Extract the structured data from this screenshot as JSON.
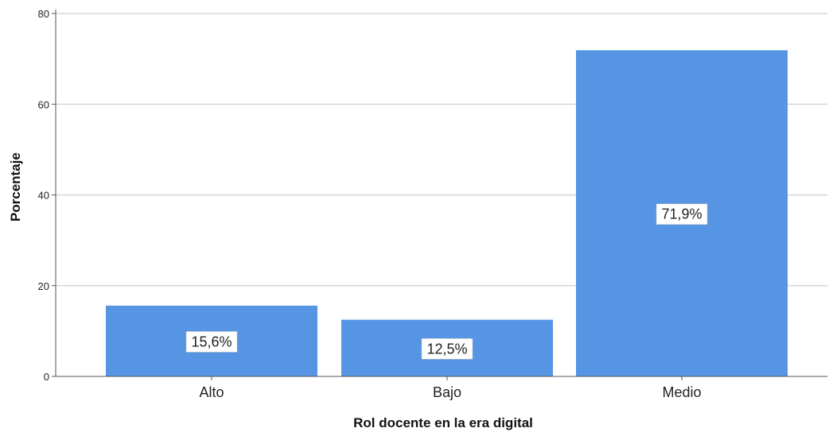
{
  "chart_data": {
    "type": "bar",
    "categories": [
      "Alto",
      "Bajo",
      "Medio"
    ],
    "values": [
      15.6,
      12.5,
      71.9
    ],
    "data_labels": [
      "15,6%",
      "12,5%",
      "71,9%"
    ],
    "xlabel": "Rol docente en la era digital",
    "ylabel": "Porcentaje",
    "ylim": [
      0,
      80
    ],
    "yticks": [
      0,
      20,
      40,
      60,
      80
    ],
    "ytick_labels": [
      "0",
      "20",
      "40",
      "60",
      "80"
    ],
    "grid": true,
    "bar_color": "#5595e4",
    "grid_color": "#cfcfcf",
    "axis_color": "#555555"
  }
}
